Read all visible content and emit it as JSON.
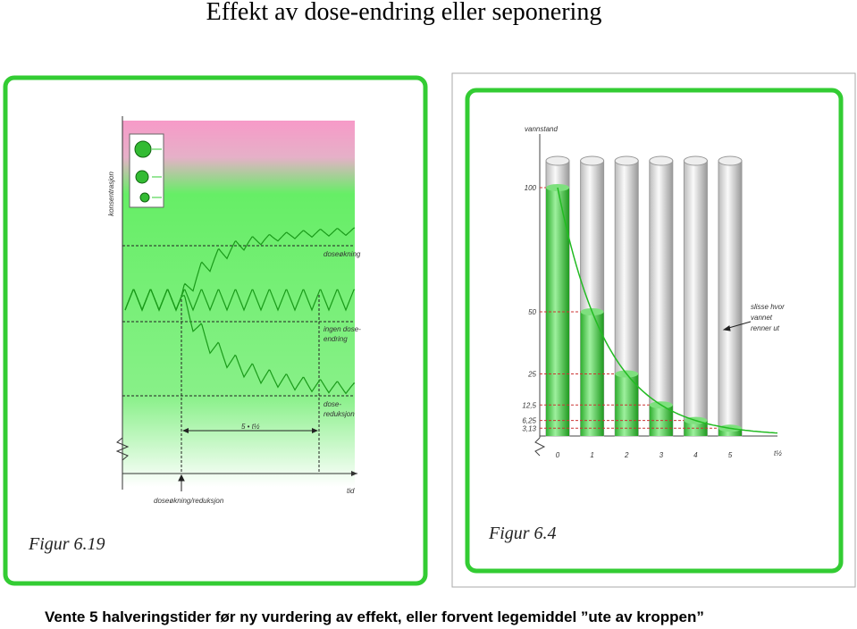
{
  "header": {
    "title": "Effekt av dose-endring eller seponering"
  },
  "left_figure": {
    "caption": "Figur 6.19",
    "y_label": "konsentrasjon",
    "x_label": "tid",
    "annotations": {
      "increase": [
        "doseøkning"
      ],
      "none": [
        "ingen dose-",
        "endring"
      ],
      "decrease": [
        "dose-",
        "reduksjon"
      ],
      "interval": "5 • t½",
      "event": "doseøkning/reduksjon"
    }
  },
  "right_figure": {
    "caption": "Figur 6.4",
    "y_label": "vannstand",
    "x_label": "t½",
    "yticks": [
      100,
      50,
      25,
      {
        "value": 12.5,
        "label": "12,5"
      },
      {
        "value": 6.25,
        "label": "6,25"
      },
      {
        "value": 3.13,
        "label": "3,13"
      }
    ],
    "xticks": [
      0,
      1,
      2,
      3,
      4,
      5
    ],
    "annotation": [
      "slisse hvor",
      "vannet",
      "renner ut"
    ]
  },
  "footer": {
    "text": "Vente 5 halveringstider før ny vurdering av effekt, eller forvent legemiddel ”ute av kroppen”"
  }
}
